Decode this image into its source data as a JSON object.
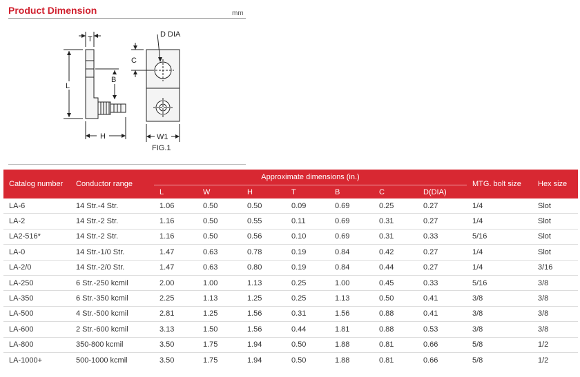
{
  "header": {
    "title": "Product Dimension",
    "unit": "mm"
  },
  "figure": {
    "caption": "FIG.1",
    "labels": {
      "T": "T",
      "L": "L",
      "B": "B",
      "H": "H",
      "C": "C",
      "D": "D DIA",
      "W1": "W1"
    }
  },
  "table": {
    "col_catalog": "Catalog number",
    "col_conductor": "Conductor range",
    "group_label": "Approximate dimensions (in.)",
    "sub_cols": [
      "L",
      "W",
      "H",
      "T",
      "B",
      "C",
      "D(DIA)"
    ],
    "col_mtg": "MTG. bolt size",
    "col_hex": "Hex size",
    "rows": [
      [
        "LA-6",
        "14 Str.-4 Str.",
        "1.06",
        "0.50",
        "0.50",
        "0.09",
        "0.69",
        "0.25",
        "0.27",
        "1/4",
        "Slot"
      ],
      [
        "LA-2",
        "14 Str.-2 Str.",
        "1.16",
        "0.50",
        "0.55",
        "0.11",
        "0.69",
        "0.31",
        "0.27",
        "1/4",
        "Slot"
      ],
      [
        "LA2-516*",
        "14 Str.-2 Str.",
        "1.16",
        "0.50",
        "0.56",
        "0.10",
        "0.69",
        "0.31",
        "0.33",
        "5/16",
        "Slot"
      ],
      [
        "LA-0",
        "14 Str.-1/0 Str.",
        "1.47",
        "0.63",
        "0.78",
        "0.19",
        "0.84",
        "0.42",
        "0.27",
        "1/4",
        "Slot"
      ],
      [
        "LA-2/0",
        "14 Str.-2/0 Str.",
        "1.47",
        "0.63",
        "0.80",
        "0.19",
        "0.84",
        "0.44",
        "0.27",
        "1/4",
        "3/16"
      ],
      [
        "LA-250",
        "6 Str.-250 kcmil",
        "2.00",
        "1.00",
        "1.13",
        "0.25",
        "1.00",
        "0.45",
        "0.33",
        "5/16",
        "3/8"
      ],
      [
        "LA-350",
        "6 Str.-350 kcmil",
        "2.25",
        "1.13",
        "1.25",
        "0.25",
        "1.13",
        "0.50",
        "0.41",
        "3/8",
        "3/8"
      ],
      [
        "LA-500",
        "4 Str.-500 kcmil",
        "2.81",
        "1.25",
        "1.56",
        "0.31",
        "1.56",
        "0.88",
        "0.41",
        "3/8",
        "3/8"
      ],
      [
        "LA-600",
        "2 Str.-600 kcmil",
        "3.13",
        "1.50",
        "1.56",
        "0.44",
        "1.81",
        "0.88",
        "0.53",
        "3/8",
        "3/8"
      ],
      [
        "LA-800",
        "350-800 kcmil",
        "3.50",
        "1.75",
        "1.94",
        "0.50",
        "1.88",
        "0.81",
        "0.66",
        "5/8",
        "1/2"
      ],
      [
        "LA-1000+",
        "500-1000 kcmil",
        "3.50",
        "1.75",
        "1.94",
        "0.50",
        "1.88",
        "0.81",
        "0.66",
        "5/8",
        "1/2"
      ]
    ]
  }
}
